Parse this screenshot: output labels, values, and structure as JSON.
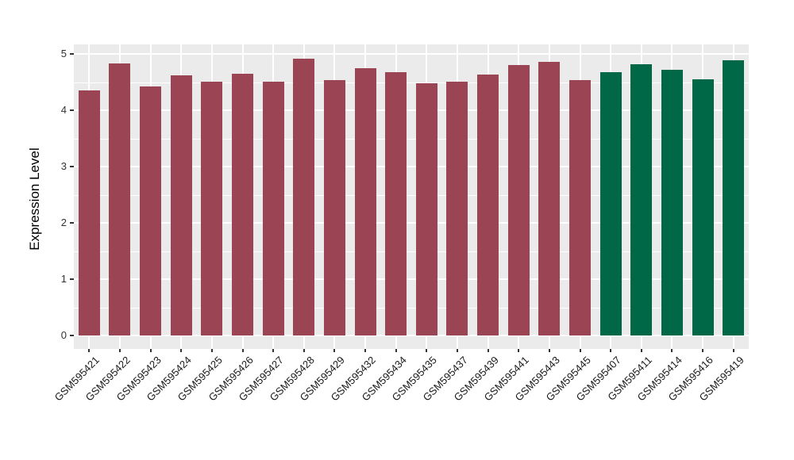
{
  "figure": {
    "title": "",
    "background_color": "#FFFFFF",
    "panel_background_color": "#EBEBEB",
    "gridline_color": "#FFFFFF",
    "tick_color": "#333333",
    "tick_label_color": "#333333",
    "axis_title_color": "#000000"
  },
  "chart_data": {
    "type": "bar",
    "title": "",
    "xlabel": "",
    "ylabel": "Expression Level",
    "ylim": [
      0,
      5.17
    ],
    "yticks": [
      0,
      1,
      2,
      3,
      4,
      5
    ],
    "grid": true,
    "legend_position": "none",
    "groups": {
      "red": "#9B4453",
      "green": "#006847"
    },
    "bars": [
      {
        "label": "GSM595421",
        "value": 4.35,
        "group": "red"
      },
      {
        "label": "GSM595422",
        "value": 4.83,
        "group": "red"
      },
      {
        "label": "GSM595423",
        "value": 4.42,
        "group": "red"
      },
      {
        "label": "GSM595424",
        "value": 4.62,
        "group": "red"
      },
      {
        "label": "GSM595425",
        "value": 4.51,
        "group": "red"
      },
      {
        "label": "GSM595426",
        "value": 4.65,
        "group": "red"
      },
      {
        "label": "GSM595427",
        "value": 4.51,
        "group": "red"
      },
      {
        "label": "GSM595428",
        "value": 4.92,
        "group": "red"
      },
      {
        "label": "GSM595429",
        "value": 4.53,
        "group": "red"
      },
      {
        "label": "GSM595432",
        "value": 4.74,
        "group": "red"
      },
      {
        "label": "GSM595434",
        "value": 4.67,
        "group": "red"
      },
      {
        "label": "GSM595435",
        "value": 4.48,
        "group": "red"
      },
      {
        "label": "GSM595437",
        "value": 4.51,
        "group": "red"
      },
      {
        "label": "GSM595439",
        "value": 4.64,
        "group": "red"
      },
      {
        "label": "GSM595441",
        "value": 4.8,
        "group": "red"
      },
      {
        "label": "GSM595443",
        "value": 4.86,
        "group": "red"
      },
      {
        "label": "GSM595445",
        "value": 4.53,
        "group": "red"
      },
      {
        "label": "GSM595407",
        "value": 4.68,
        "group": "green"
      },
      {
        "label": "GSM595411",
        "value": 4.82,
        "group": "green"
      },
      {
        "label": "GSM595414",
        "value": 4.72,
        "group": "green"
      },
      {
        "label": "GSM595416",
        "value": 4.55,
        "group": "green"
      },
      {
        "label": "GSM595419",
        "value": 4.89,
        "group": "green"
      }
    ]
  }
}
